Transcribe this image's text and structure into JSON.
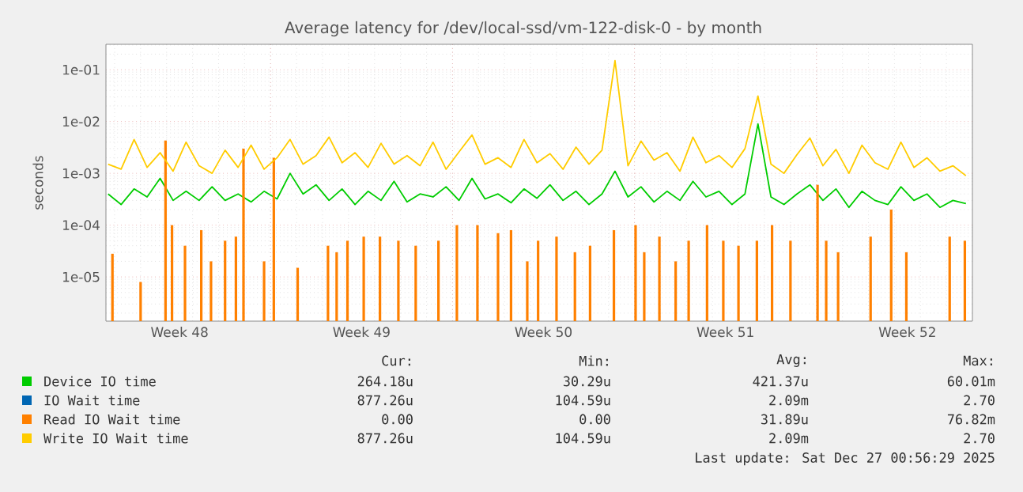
{
  "chart_data": {
    "type": "line",
    "title": "Average latency for /dev/local-ssd/vm-122-disk-0 - by month",
    "ylabel": "seconds",
    "x": [
      "2025-11-24T18:00",
      "2025-11-25T06:00",
      "2025-11-25T18:00",
      "2025-11-26T06:00",
      "2025-11-26T18:00",
      "2025-11-27T06:00",
      "2025-11-27T18:00",
      "2025-11-28T06:00",
      "2025-11-28T18:00",
      "2025-11-29T06:00",
      "2025-11-29T18:00",
      "2025-11-30T06:00",
      "2025-11-30T18:00",
      "2025-12-01T06:00",
      "2025-12-01T18:00",
      "2025-12-02T06:00",
      "2025-12-02T18:00",
      "2025-12-03T06:00",
      "2025-12-03T18:00",
      "2025-12-04T06:00",
      "2025-12-04T18:00",
      "2025-12-05T06:00",
      "2025-12-05T18:00",
      "2025-12-06T06:00",
      "2025-12-06T18:00",
      "2025-12-07T06:00",
      "2025-12-07T18:00",
      "2025-12-08T06:00",
      "2025-12-08T18:00",
      "2025-12-09T06:00",
      "2025-12-09T18:00",
      "2025-12-10T06:00",
      "2025-12-10T18:00",
      "2025-12-11T06:00",
      "2025-12-11T18:00",
      "2025-12-12T06:00",
      "2025-12-12T18:00",
      "2025-12-13T06:00",
      "2025-12-13T18:00",
      "2025-12-14T06:00",
      "2025-12-14T18:00",
      "2025-12-15T06:00",
      "2025-12-15T18:00",
      "2025-12-16T06:00",
      "2025-12-16T18:00",
      "2025-12-17T06:00",
      "2025-12-17T18:00",
      "2025-12-18T06:00",
      "2025-12-18T18:00",
      "2025-12-19T06:00",
      "2025-12-19T18:00",
      "2025-12-20T06:00",
      "2025-12-20T18:00",
      "2025-12-21T06:00",
      "2025-12-21T18:00",
      "2025-12-22T06:00",
      "2025-12-22T18:00",
      "2025-12-23T06:00",
      "2025-12-23T18:00",
      "2025-12-24T06:00",
      "2025-12-24T18:00",
      "2025-12-25T06:00",
      "2025-12-25T18:00",
      "2025-12-26T06:00",
      "2025-12-26T18:00",
      "2025-12-27T06:00",
      "2025-12-27T18:00"
    ],
    "series": [
      {
        "name": "Device IO time",
        "color": "#00cc00",
        "values": [
          0.0004,
          0.00025,
          0.0005,
          0.00035,
          0.0008,
          0.0003,
          0.00045,
          0.0003,
          0.00055,
          0.0003,
          0.0004,
          0.00028,
          0.00045,
          0.00032,
          0.001,
          0.0004,
          0.0006,
          0.0003,
          0.0005,
          0.00025,
          0.00045,
          0.0003,
          0.0007,
          0.00028,
          0.0004,
          0.00035,
          0.00055,
          0.0003,
          0.0008,
          0.00032,
          0.0004,
          0.00027,
          0.0005,
          0.00033,
          0.0006,
          0.0003,
          0.00045,
          0.00025,
          0.0004,
          0.0011,
          0.00035,
          0.00055,
          0.00028,
          0.00045,
          0.0003,
          0.0007,
          0.00035,
          0.00045,
          0.00025,
          0.0004,
          0.009,
          0.00035,
          0.00025,
          0.0004,
          0.0006,
          0.0003,
          0.0005,
          0.00022,
          0.00045,
          0.0003,
          0.00025,
          0.00055,
          0.0003,
          0.0004,
          0.00022,
          0.0003,
          0.00026
        ]
      },
      {
        "name": "IO Wait time",
        "color": "#0066b3",
        "values": [
          null,
          null,
          null,
          null,
          null,
          null,
          null,
          null,
          null,
          null,
          null,
          null,
          null,
          null,
          null,
          null,
          null,
          null,
          null,
          null,
          null,
          null,
          null,
          null,
          null,
          null,
          null,
          null,
          null,
          null,
          null,
          null,
          null,
          null,
          null,
          null,
          null,
          null,
          null,
          null,
          null,
          null,
          null,
          null,
          null,
          null,
          null,
          null,
          null,
          null,
          null,
          null,
          null,
          null,
          null,
          null,
          null,
          null,
          null,
          null,
          null,
          null,
          null,
          null,
          null,
          null,
          null
        ]
      },
      {
        "name": "Read IO Wait time",
        "color": "#ff8000",
        "type": "bar",
        "x": [
          "2025-11-24T22:00",
          "2025-11-26T00:00",
          "2025-11-26T23:00",
          "2025-11-27T05:00",
          "2025-11-27T17:00",
          "2025-11-28T08:00",
          "2025-11-28T17:00",
          "2025-11-29T06:00",
          "2025-11-29T16:00",
          "2025-11-29T23:00",
          "2025-11-30T18:00",
          "2025-12-01T03:00",
          "2025-12-02T01:00",
          "2025-12-03T05:00",
          "2025-12-03T13:00",
          "2025-12-03T23:00",
          "2025-12-04T14:00",
          "2025-12-05T05:00",
          "2025-12-05T22:00",
          "2025-12-06T14:00",
          "2025-12-07T11:00",
          "2025-12-08T04:00",
          "2025-12-08T23:00",
          "2025-12-09T18:00",
          "2025-12-10T06:00",
          "2025-12-10T21:00",
          "2025-12-11T07:00",
          "2025-12-12T00:00",
          "2025-12-12T17:00",
          "2025-12-13T07:00",
          "2025-12-14T05:00",
          "2025-12-15T01:00",
          "2025-12-15T09:00",
          "2025-12-15T23:00",
          "2025-12-16T14:00",
          "2025-12-17T02:00",
          "2025-12-17T19:00",
          "2025-12-18T10:00",
          "2025-12-19T00:00",
          "2025-12-19T17:00",
          "2025-12-20T07:00",
          "2025-12-21T00:00",
          "2025-12-22T01:00",
          "2025-12-22T09:00",
          "2025-12-22T20:00",
          "2025-12-24T02:00",
          "2025-12-24T21:00",
          "2025-12-25T11:00",
          "2025-12-27T03:00",
          "2025-12-27T17:00"
        ],
        "values": [
          2.8e-05,
          8e-06,
          0.0043,
          0.0001,
          4e-05,
          8e-05,
          2e-05,
          5e-05,
          6e-05,
          0.003,
          2e-05,
          0.002,
          1.5e-05,
          4e-05,
          3e-05,
          5e-05,
          6e-05,
          6e-05,
          5e-05,
          4e-05,
          5e-05,
          0.0001,
          0.0001,
          7e-05,
          8e-05,
          2e-05,
          5e-05,
          6e-05,
          3e-05,
          4e-05,
          8e-05,
          0.0001,
          3e-05,
          6e-05,
          2e-05,
          5e-05,
          0.0001,
          5e-05,
          4e-05,
          5e-05,
          0.0001,
          5e-05,
          0.0006,
          5e-05,
          3e-05,
          6e-05,
          0.0002,
          3e-05,
          6e-05,
          5e-05
        ]
      },
      {
        "name": "Write IO Wait time",
        "color": "#ffcc00",
        "values": [
          0.0015,
          0.0012,
          0.0045,
          0.0013,
          0.0025,
          0.0011,
          0.004,
          0.0014,
          0.001,
          0.0028,
          0.0013,
          0.0035,
          0.0012,
          0.002,
          0.0045,
          0.0015,
          0.0022,
          0.005,
          0.0016,
          0.0025,
          0.0013,
          0.0038,
          0.0015,
          0.0022,
          0.0014,
          0.004,
          0.0012,
          0.0026,
          0.0055,
          0.0015,
          0.002,
          0.0013,
          0.0045,
          0.0016,
          0.0024,
          0.0012,
          0.0032,
          0.0015,
          0.0028,
          0.15,
          0.0014,
          0.0042,
          0.0018,
          0.0025,
          0.0011,
          0.005,
          0.0016,
          0.0022,
          0.0013,
          0.003,
          0.031,
          0.0015,
          0.001,
          0.0023,
          0.0048,
          0.0014,
          0.0029,
          0.001,
          0.0035,
          0.0016,
          0.0012,
          0.004,
          0.0013,
          0.002,
          0.0011,
          0.0014,
          0.0009
        ]
      }
    ],
    "log": "y",
    "grid": true,
    "legend": "bottom",
    "xlim": [
      "2025-11-24T16:00",
      "2025-12-28T00:00"
    ],
    "xticks": [
      {
        "value": "2025-11-27T12:00",
        "label": "Week 48"
      },
      {
        "value": "2025-12-01",
        "label": null
      },
      {
        "value": "2025-12-04T12:00",
        "label": "Week 49"
      },
      {
        "value": "2025-12-08",
        "label": null
      },
      {
        "value": "2025-12-11T12:00",
        "label": "Week 50"
      },
      {
        "value": "2025-12-15",
        "label": null
      },
      {
        "value": "2025-12-18T12:00",
        "label": "Week 51"
      },
      {
        "value": "2025-12-22",
        "label": null
      },
      {
        "value": "2025-12-25T12:00",
        "label": "Week 52"
      }
    ],
    "ylim": [
      1.4e-06,
      0.31
    ],
    "yticks": [
      {
        "value": 1e-05,
        "label": "1e-05"
      },
      {
        "value": 0.0001,
        "label": "1e-04"
      },
      {
        "value": 0.001,
        "label": "1e-03"
      },
      {
        "value": 0.01,
        "label": "1e-02"
      },
      {
        "value": 0.1,
        "label": "1e-01"
      }
    ],
    "annotations": [
      "Cur:",
      "Min:",
      "Avg:",
      "Max:",
      "264.18u",
      "30.29u",
      "421.37u",
      "60.01m",
      "877.26u",
      "104.59u",
      "2.09m",
      "2.70",
      "0.00",
      "0.00",
      "31.89u",
      "76.82m",
      "877.26u",
      "104.59u",
      "2.09m",
      "2.70",
      "Last update: Sat Dec 27 00:56:29 2025"
    ]
  }
}
